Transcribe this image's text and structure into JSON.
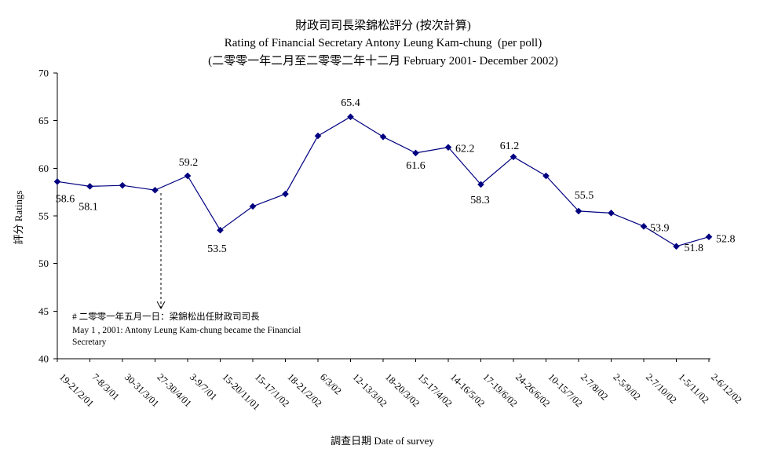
{
  "chart_data": {
    "type": "line",
    "title": "財政司司長梁錦松評分 (按次計算)",
    "subtitle": "Rating of Financial Secretary Antony Leung Kam-chung  (per poll)",
    "period": "(二零零一年二月至二零零二年十二月 February 2001- December 2002)",
    "xlabel": "調查日期 Date of survey",
    "ylabel": "評分 Ratings",
    "ylim": [
      40,
      70
    ],
    "yticks": [
      40,
      45,
      50,
      55,
      60,
      65,
      70
    ],
    "grid": false,
    "categories": [
      "19-21/2/01",
      "7-8/3/01",
      "30-31/3/01",
      "27-30/4/01",
      "3-9/7/01",
      "15-20/11/01",
      "15-17/1/02",
      "18-21/2/02",
      "6/3/02",
      "12-13/3/02",
      "18-20/3/02",
      "15-17/4/02",
      "14-16/5/02",
      "17-19/6/02",
      "24-26/6/02",
      "10-15/7/02",
      "2-7/8/02",
      "2-5/9/02",
      "2-7/10/02",
      "1-5/11/02",
      "2-6/12/02"
    ],
    "series": [
      {
        "color": "#000080",
        "values": [
          58.6,
          58.1,
          58.2,
          57.7,
          59.2,
          53.5,
          56.0,
          57.3,
          63.4,
          65.4,
          63.3,
          61.6,
          62.2,
          58.3,
          61.2,
          59.2,
          55.5,
          55.3,
          53.9,
          51.8,
          52.8
        ],
        "data_labels": [
          "58.6",
          "58.1",
          null,
          null,
          "59.2",
          "53.5",
          null,
          null,
          null,
          "65.4",
          null,
          "61.6",
          "62.2",
          "58.3",
          "61.2",
          null,
          "55.5",
          null,
          "53.9",
          "51.8",
          "52.8"
        ]
      }
    ],
    "annotation": {
      "lines": [
        "# 二零零一年五月一日：梁錦松出任財政司司長",
        "May 1 , 2001: Antony Leung Kam-chung became the Financial",
        "Secretary"
      ]
    }
  }
}
